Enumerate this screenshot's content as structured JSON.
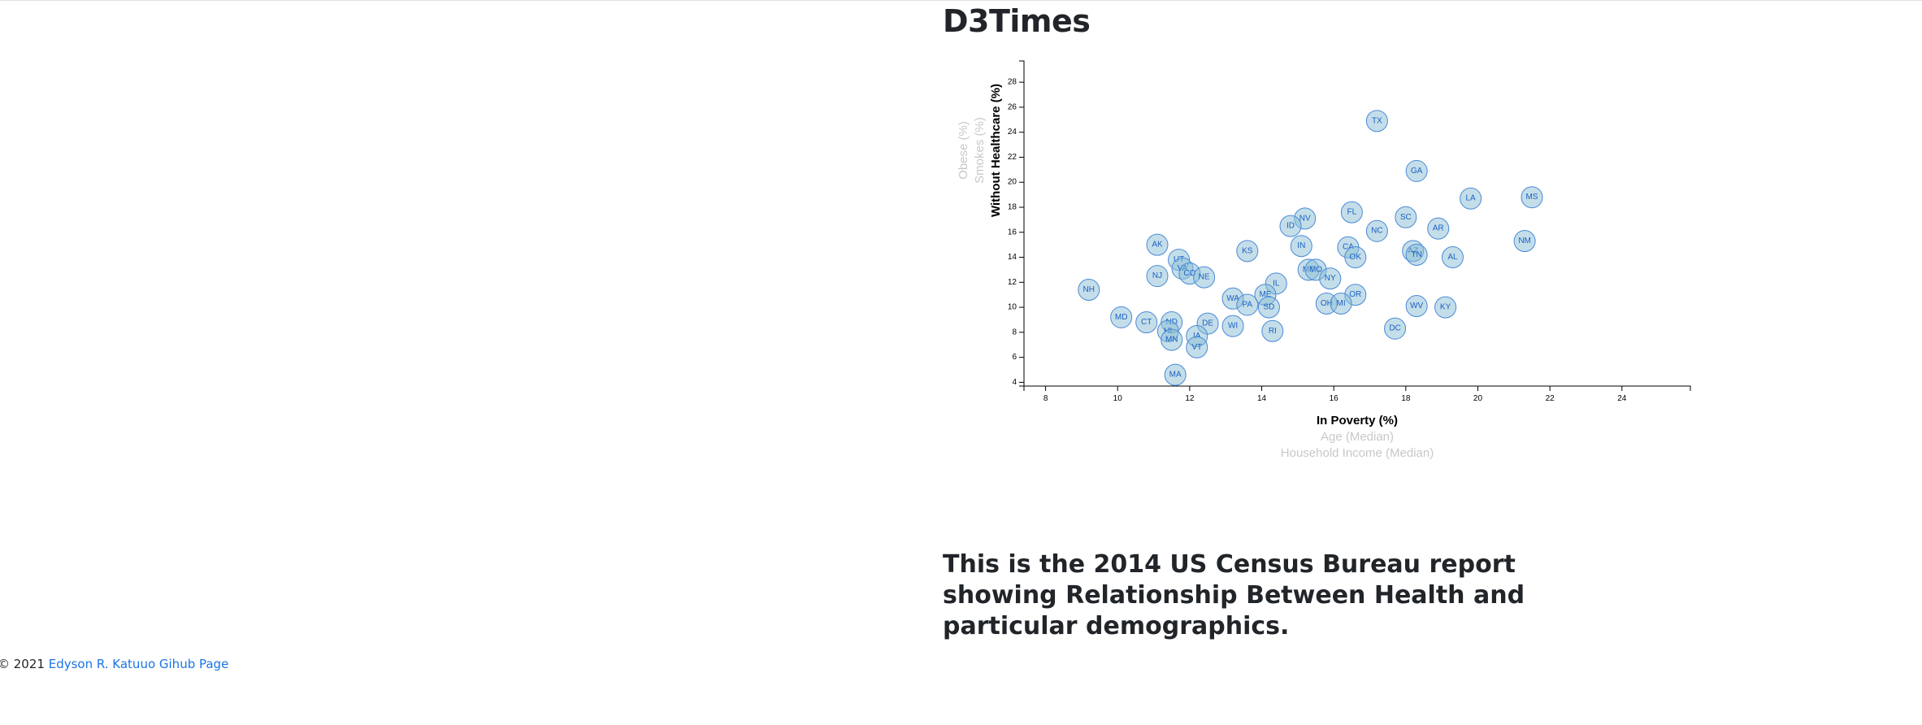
{
  "header": {
    "title": "D3Times"
  },
  "footer": {
    "copyright": "© 2021 ",
    "link_text": "Edyson R. Katuuo Gihub Page"
  },
  "caption": {
    "text": "This is the 2014 US Census Bureau report showing Relationship Between Health and particular demographics."
  },
  "chart_data": {
    "type": "scatter",
    "title": "",
    "xlabel": "In Poverty (%)",
    "x_alt_labels": [
      "Age (Median)",
      "Household Income (Median)"
    ],
    "ylabel": "Without Healthcare (%)",
    "y_alt_labels": [
      "Smokes (%)",
      "Obese (%)"
    ],
    "xlim": [
      7.4,
      25.9
    ],
    "ylim": [
      3.7,
      29.7
    ],
    "xticks": [
      8,
      10,
      12,
      14,
      16,
      18,
      20,
      22,
      24
    ],
    "yticks": [
      4,
      6,
      8,
      10,
      12,
      14,
      16,
      18,
      20,
      22,
      24,
      26,
      28
    ],
    "grid": false,
    "colors": {
      "fill": "#89bdd3",
      "stroke": "#4a8ad8",
      "text": "#1a5fc4"
    },
    "points": [
      {
        "abbr": "TX",
        "x": 17.2,
        "y": 24.9
      },
      {
        "abbr": "GA",
        "x": 18.3,
        "y": 20.9
      },
      {
        "abbr": "LA",
        "x": 19.8,
        "y": 18.7
      },
      {
        "abbr": "MS",
        "x": 21.5,
        "y": 18.8
      },
      {
        "abbr": "FL",
        "x": 16.5,
        "y": 17.6
      },
      {
        "abbr": "NV",
        "x": 15.2,
        "y": 17.1
      },
      {
        "abbr": "SC",
        "x": 18.0,
        "y": 17.2
      },
      {
        "abbr": "ID",
        "x": 14.8,
        "y": 16.5
      },
      {
        "abbr": "NC",
        "x": 17.2,
        "y": 16.1
      },
      {
        "abbr": "AR",
        "x": 18.9,
        "y": 16.3
      },
      {
        "abbr": "NM",
        "x": 21.3,
        "y": 15.3
      },
      {
        "abbr": "AK",
        "x": 11.1,
        "y": 15.0
      },
      {
        "abbr": "IN",
        "x": 15.1,
        "y": 14.9
      },
      {
        "abbr": "CA",
        "x": 16.4,
        "y": 14.8
      },
      {
        "abbr": "KS",
        "x": 13.6,
        "y": 14.5
      },
      {
        "abbr": "AZ",
        "x": 18.2,
        "y": 14.5
      },
      {
        "abbr": "TN",
        "x": 18.3,
        "y": 14.2
      },
      {
        "abbr": "OK",
        "x": 16.6,
        "y": 14.0
      },
      {
        "abbr": "AL",
        "x": 19.3,
        "y": 14.0
      },
      {
        "abbr": "UT",
        "x": 11.7,
        "y": 13.8
      },
      {
        "abbr": "VA",
        "x": 11.8,
        "y": 13.1
      },
      {
        "abbr": "MT",
        "x": 15.3,
        "y": 13.0
      },
      {
        "abbr": "MO",
        "x": 15.5,
        "y": 13.0
      },
      {
        "abbr": "CO",
        "x": 12.0,
        "y": 12.7
      },
      {
        "abbr": "NJ",
        "x": 11.1,
        "y": 12.5
      },
      {
        "abbr": "NE",
        "x": 12.4,
        "y": 12.4
      },
      {
        "abbr": "NY",
        "x": 15.9,
        "y": 12.3
      },
      {
        "abbr": "IL",
        "x": 14.4,
        "y": 11.9
      },
      {
        "abbr": "NH",
        "x": 9.2,
        "y": 11.4
      },
      {
        "abbr": "OR",
        "x": 16.6,
        "y": 11.0
      },
      {
        "abbr": "ME",
        "x": 14.1,
        "y": 11.0
      },
      {
        "abbr": "WA",
        "x": 13.2,
        "y": 10.7
      },
      {
        "abbr": "OH",
        "x": 15.8,
        "y": 10.3
      },
      {
        "abbr": "MI",
        "x": 16.2,
        "y": 10.3
      },
      {
        "abbr": "PA",
        "x": 13.6,
        "y": 10.2
      },
      {
        "abbr": "SD",
        "x": 14.2,
        "y": 10.0
      },
      {
        "abbr": "WV",
        "x": 18.3,
        "y": 10.1
      },
      {
        "abbr": "KY",
        "x": 19.1,
        "y": 10.0
      },
      {
        "abbr": "MD",
        "x": 10.1,
        "y": 9.2
      },
      {
        "abbr": "CT",
        "x": 10.8,
        "y": 8.8
      },
      {
        "abbr": "ND",
        "x": 11.5,
        "y": 8.8
      },
      {
        "abbr": "DE",
        "x": 12.5,
        "y": 8.7
      },
      {
        "abbr": "WI",
        "x": 13.2,
        "y": 8.5
      },
      {
        "abbr": "DC",
        "x": 17.7,
        "y": 8.3
      },
      {
        "abbr": "HI",
        "x": 11.4,
        "y": 8.1
      },
      {
        "abbr": "RI",
        "x": 14.3,
        "y": 8.1
      },
      {
        "abbr": "IA",
        "x": 12.2,
        "y": 7.7
      },
      {
        "abbr": "MN",
        "x": 11.5,
        "y": 7.4
      },
      {
        "abbr": "VT",
        "x": 12.2,
        "y": 6.8
      },
      {
        "abbr": "MA",
        "x": 11.6,
        "y": 4.6
      }
    ]
  }
}
